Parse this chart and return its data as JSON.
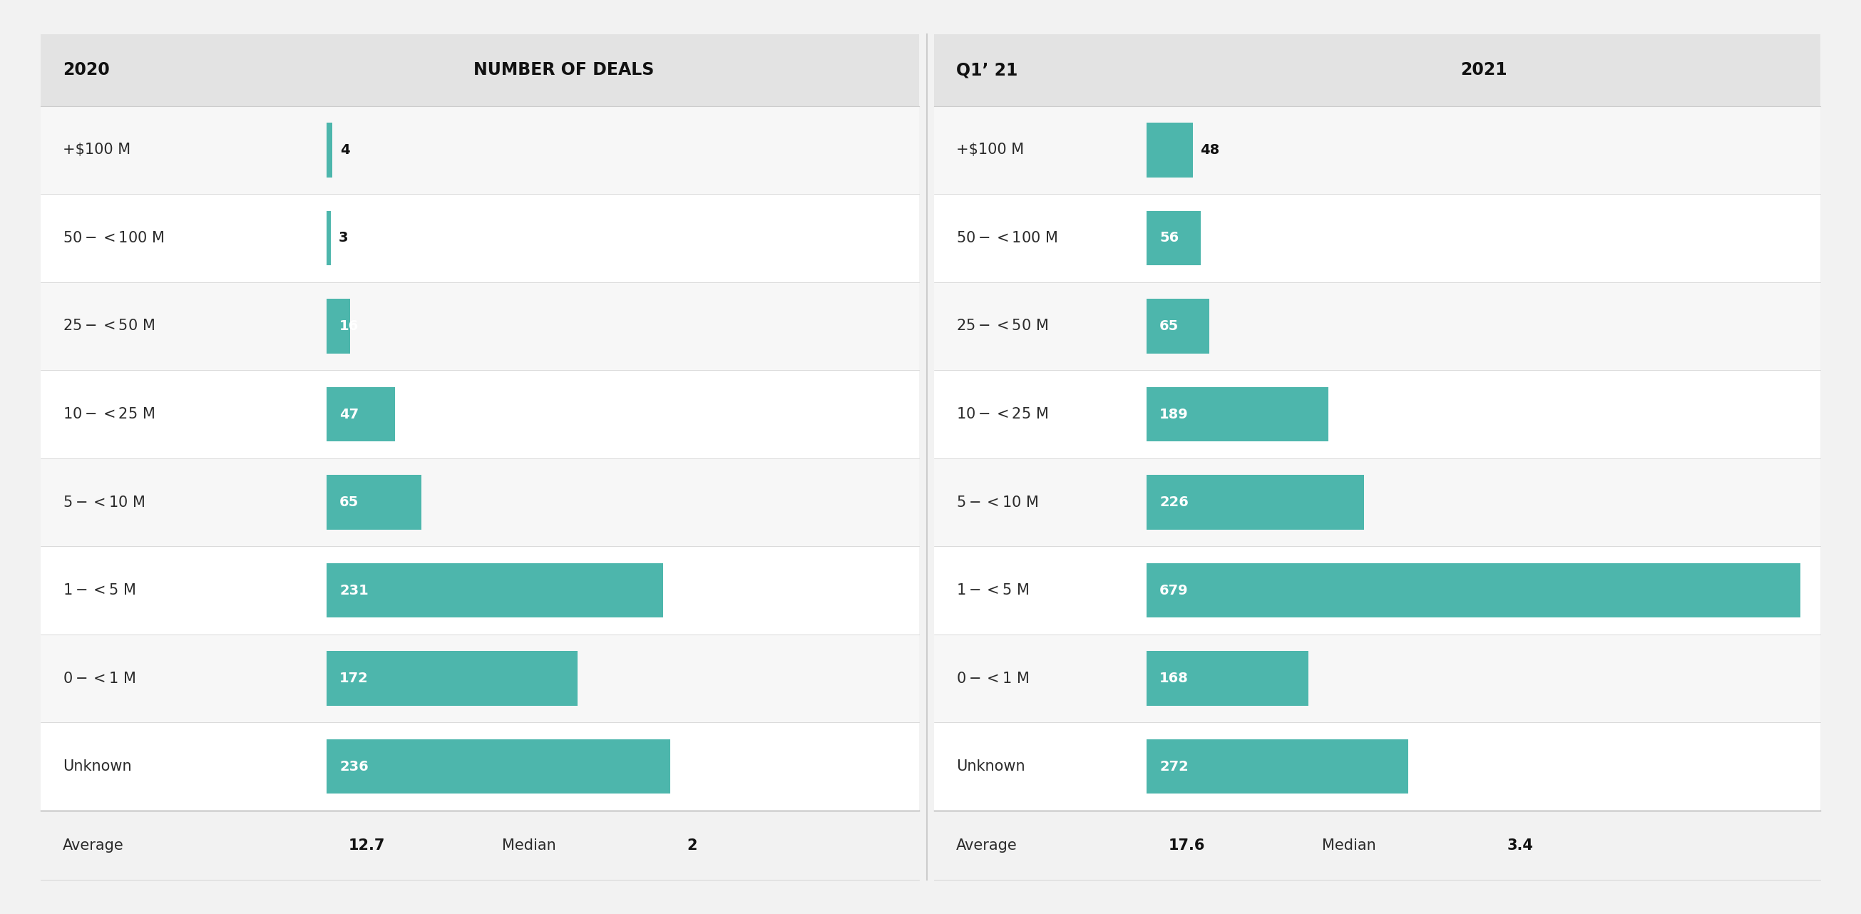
{
  "categories": [
    "+$100 M",
    "$50-<$100 M",
    "$25-<$50 M",
    "$10-<$25 M",
    "$5-<$10 M",
    "$1-<$5 M",
    "$0-<$1 M",
    "Unknown"
  ],
  "values_2020": [
    4,
    3,
    16,
    47,
    65,
    231,
    172,
    236
  ],
  "values_2021": [
    48,
    56,
    65,
    189,
    226,
    679,
    168,
    272
  ],
  "bar_color": "#4db6ac",
  "bg_color_dark": "#ebebeb",
  "bg_color_light": "#f7f7f7",
  "row_bg_white": "#ffffff",
  "header_bg": "#e3e3e3",
  "outer_bg": "#f2f2f2",
  "header_text_color": "#111111",
  "label_color": "#2b2b2b",
  "value_color_dark": "#111111",
  "value_color_white": "#ffffff",
  "col1_header": "2020",
  "col2_header": "NUMBER OF DEALS",
  "col3_header": "Q1’ 21",
  "col4_header": "2021",
  "avg_2020": "12.7",
  "median_2020": "2",
  "avg_2021": "17.6",
  "median_2021": "3.4",
  "max_2020": 236,
  "max_2021": 679,
  "figure_width": 25.9,
  "figure_height": 12.62
}
